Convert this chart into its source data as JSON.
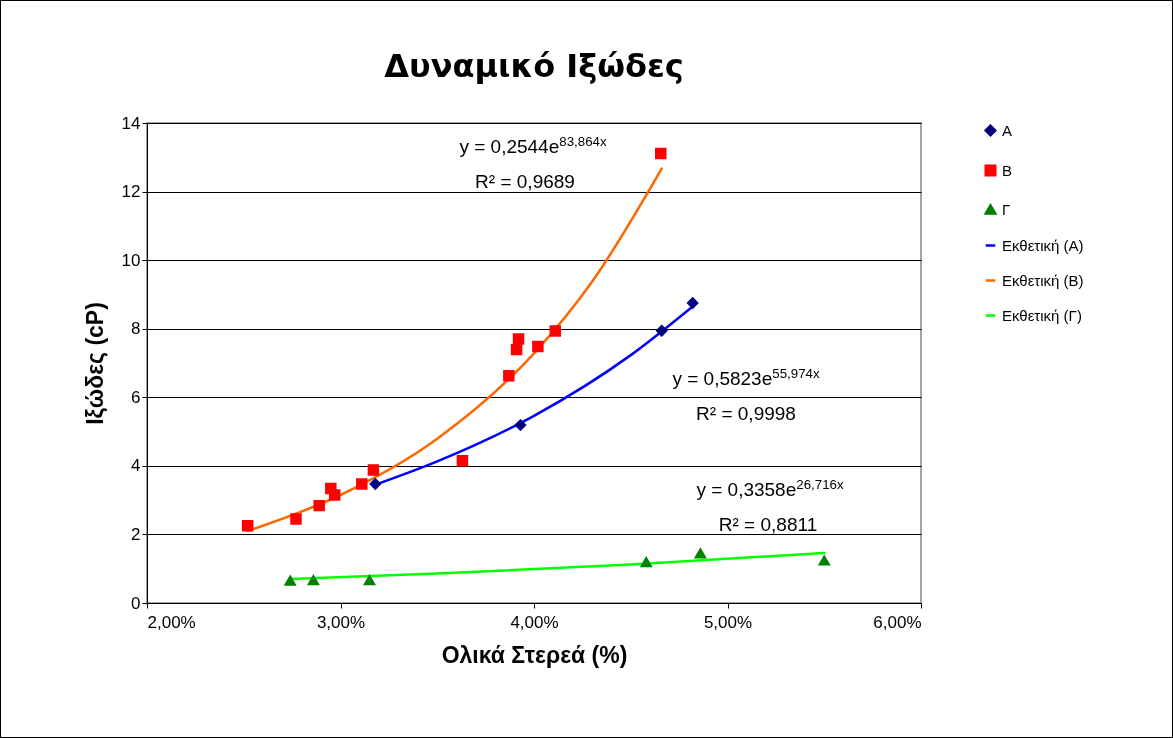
{
  "chart_data": {
    "type": "scatter",
    "title": "Δυναμικό Ιξώδες",
    "xlabel": "Ολικά Στερεά (%)",
    "ylabel": "Ιξώδες (cP)",
    "xlim": [
      0.02,
      0.06
    ],
    "xticks": [
      {
        "value": 0.02,
        "label": "2,00%"
      },
      {
        "value": 0.03,
        "label": "3,00%"
      },
      {
        "value": 0.04,
        "label": "4,00%"
      },
      {
        "value": 0.05,
        "label": "5,00%"
      },
      {
        "value": 0.06,
        "label": "6,00%"
      }
    ],
    "ylim": [
      0,
      14
    ],
    "yticks": [
      0,
      2,
      4,
      6,
      8,
      10,
      12,
      14
    ],
    "grid": "y",
    "legend": "right",
    "series": [
      {
        "name": "Α",
        "type": "scatter",
        "marker": "diamond",
        "color": "#000080",
        "x": [
          0.0318,
          0.0393,
          0.0466,
          0.0482
        ],
        "values": [
          3.47,
          5.19,
          7.94,
          8.75
        ]
      },
      {
        "name": "Β",
        "type": "scatter",
        "marker": "square",
        "color": "#ff0000",
        "x": [
          0.0252,
          0.0277,
          0.0289,
          0.0295,
          0.0297,
          0.0311,
          0.0317,
          0.0363,
          0.0387,
          0.0391,
          0.0392,
          0.0402,
          0.0411,
          0.04655
        ],
        "values": [
          2.25,
          2.45,
          2.84,
          3.34,
          3.15,
          3.47,
          3.88,
          4.15,
          6.63,
          7.39,
          7.7,
          7.48,
          7.93,
          13.11
        ]
      },
      {
        "name": "Γ",
        "type": "scatter",
        "marker": "triangle",
        "color": "#008000",
        "x": [
          0.0274,
          0.0286,
          0.0315,
          0.0458,
          0.0486,
          0.055
        ],
        "values": [
          0.65,
          0.67,
          0.67,
          1.19,
          1.45,
          1.24
        ]
      },
      {
        "name": "Εκθετική (Α)",
        "type": "line",
        "color": "#0000ff",
        "x": [
          0.0318,
          0.035,
          0.04,
          0.045,
          0.0482
        ],
        "values": [
          3.45,
          4.13,
          5.46,
          7.23,
          8.65
        ]
      },
      {
        "name": "Εκθετική (Β)",
        "type": "line",
        "color": "#ff6600",
        "x": [
          0.0252,
          0.03,
          0.035,
          0.04,
          0.043,
          0.0466
        ],
        "values": [
          2.1,
          3.15,
          4.79,
          7.28,
          9.37,
          12.67
        ]
      },
      {
        "name": "Εκθετική (Γ)",
        "type": "line",
        "color": "#00ff00",
        "x": [
          0.0274,
          0.035,
          0.045,
          0.055
        ],
        "values": [
          0.7,
          0.86,
          1.12,
          1.46
        ]
      }
    ],
    "annotations": [
      "y = 0,2544e$^{83,864x}$",
      "R² = 0,9689",
      "y = 0,5823e$^{55,974x}$",
      "R² = 0,9998",
      "y = 0,3358e$^{26,716x}$",
      "R² = 0,8811"
    ]
  }
}
